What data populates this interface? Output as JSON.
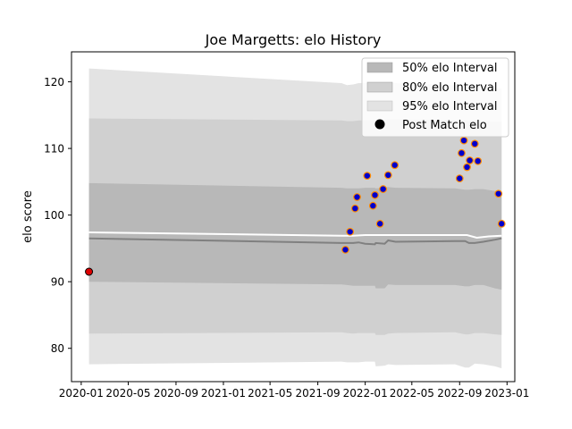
{
  "chart_data": {
    "type": "area",
    "title": "Joe Margetts: elo History",
    "xlabel": "",
    "ylabel": "elo score",
    "xlim": [
      "2019-12-07",
      "2023-01-21"
    ],
    "ylim": [
      75,
      124.5
    ],
    "x_ticks": [
      "2020-01",
      "2020-05",
      "2020-09",
      "2021-01",
      "2021-05",
      "2021-09",
      "2022-01",
      "2022-05",
      "2022-09",
      "2023-01"
    ],
    "y_ticks": [
      80,
      90,
      100,
      110,
      120
    ],
    "grid": false,
    "legend": {
      "placement": "top-right",
      "entries": [
        "50% elo Interval",
        "80% elo Interval",
        "95% elo Interval",
        "Post Match elo"
      ]
    },
    "bands": [
      {
        "name": "95% elo Interval",
        "color": "#e3e3e3",
        "x": [
          "2020-01-21",
          "2021-11-01",
          "2021-11-15",
          "2021-12-01",
          "2021-12-15",
          "2022-01-01",
          "2022-01-26",
          "2022-01-28",
          "2022-02-20",
          "2022-03-01",
          "2022-03-20",
          "2022-08-20",
          "2022-09-15",
          "2022-09-25",
          "2022-10-10",
          "2022-11-01",
          "2022-12-01",
          "2022-12-18"
        ],
        "lower": [
          77.6,
          78.0,
          77.9,
          77.9,
          77.9,
          78.0,
          78.0,
          77.3,
          77.4,
          77.6,
          77.5,
          77.6,
          77.1,
          77.1,
          77.7,
          77.6,
          77.3,
          77.0
        ],
        "upper": [
          122.0,
          119.8,
          119.5,
          119.6,
          119.8,
          119.8,
          119.8,
          119.8,
          119.8,
          119.9,
          119.8,
          119.5,
          119.4,
          119.5,
          119.4,
          119.3,
          119.0,
          119.0
        ]
      },
      {
        "name": "80% elo Interval",
        "color": "#d0d0d0",
        "x": [
          "2020-01-21",
          "2021-11-01",
          "2021-11-15",
          "2021-12-01",
          "2021-12-15",
          "2022-01-01",
          "2022-01-26",
          "2022-01-28",
          "2022-02-20",
          "2022-03-01",
          "2022-03-20",
          "2022-08-20",
          "2022-09-15",
          "2022-09-25",
          "2022-10-10",
          "2022-11-01",
          "2022-12-01",
          "2022-12-18"
        ],
        "lower": [
          82.2,
          82.4,
          82.3,
          82.2,
          82.3,
          82.3,
          82.3,
          82.0,
          82.0,
          82.2,
          82.3,
          82.4,
          82.1,
          82.1,
          82.3,
          82.3,
          82.1,
          82.0
        ],
        "upper": [
          114.5,
          114.2,
          114.1,
          114.1,
          114.2,
          114.2,
          114.2,
          114.2,
          114.3,
          114.4,
          114.4,
          114.2,
          114.2,
          114.1,
          114.1,
          114.1,
          114.0,
          114.0
        ]
      },
      {
        "name": "50% elo Interval",
        "color": "#b8b8b8",
        "x": [
          "2020-01-21",
          "2021-11-01",
          "2021-11-15",
          "2021-12-01",
          "2021-12-15",
          "2022-01-01",
          "2022-01-26",
          "2022-01-28",
          "2022-02-20",
          "2022-03-01",
          "2022-03-20",
          "2022-08-20",
          "2022-09-15",
          "2022-09-25",
          "2022-10-10",
          "2022-11-01",
          "2022-12-01",
          "2022-12-18"
        ],
        "lower": [
          90.0,
          89.6,
          89.5,
          89.4,
          89.4,
          89.4,
          89.4,
          89.0,
          89.0,
          89.6,
          89.5,
          89.5,
          89.3,
          89.3,
          89.5,
          89.5,
          89.0,
          88.8
        ],
        "upper": [
          104.8,
          104.1,
          104.0,
          104.0,
          104.0,
          104.1,
          104.1,
          104.0,
          104.1,
          104.2,
          104.1,
          104.0,
          103.8,
          103.8,
          103.9,
          103.9,
          103.6,
          103.5
        ]
      }
    ],
    "series": [
      {
        "name": "",
        "color": "#808080",
        "x": [
          "2020-01-21",
          "2021-11-01",
          "2021-11-15",
          "2021-12-01",
          "2021-12-15",
          "2022-01-01",
          "2022-01-26",
          "2022-01-28",
          "2022-02-20",
          "2022-03-01",
          "2022-03-20",
          "2022-08-20",
          "2022-09-15",
          "2022-09-25",
          "2022-10-10",
          "2022-11-01",
          "2022-12-01",
          "2022-12-18"
        ],
        "values": [
          96.5,
          95.8,
          95.8,
          95.8,
          95.9,
          95.7,
          95.6,
          95.8,
          95.7,
          96.2,
          96.0,
          96.1,
          96.1,
          95.8,
          95.8,
          96.0,
          96.3,
          96.5
        ]
      },
      {
        "name": "",
        "color": "#ffffff",
        "x": [
          "2020-01-21",
          "2021-11-01",
          "2021-12-01",
          "2022-01-01",
          "2022-03-01",
          "2022-08-20",
          "2022-09-20",
          "2022-10-15",
          "2022-11-15",
          "2022-12-18"
        ],
        "values": [
          97.4,
          96.9,
          96.9,
          97.0,
          97.0,
          97.0,
          97.0,
          96.6,
          96.8,
          96.9
        ]
      }
    ],
    "points": {
      "name": "Post Match elo",
      "fill": "#0000cc",
      "edge": "#ff8c00",
      "x": [
        "2021-11-11",
        "2021-11-23",
        "2021-12-06",
        "2021-12-11",
        "2022-01-06",
        "2022-01-21",
        "2022-01-26",
        "2022-02-08",
        "2022-02-16",
        "2022-03-01",
        "2022-03-18",
        "2022-09-01",
        "2022-09-06",
        "2022-09-12",
        "2022-09-20",
        "2022-09-27",
        "2022-10-10",
        "2022-10-18",
        "2022-12-10",
        "2022-12-18"
      ],
      "values": [
        94.8,
        97.5,
        101.0,
        102.7,
        105.9,
        101.4,
        103.0,
        98.7,
        103.9,
        106.0,
        107.5,
        105.5,
        109.3,
        111.2,
        107.2,
        108.2,
        110.7,
        108.1,
        103.2,
        98.7
      ]
    },
    "first_point": {
      "x": "2020-01-21",
      "value": 91.5,
      "fill": "#dd0000",
      "edge": "#000000"
    }
  }
}
